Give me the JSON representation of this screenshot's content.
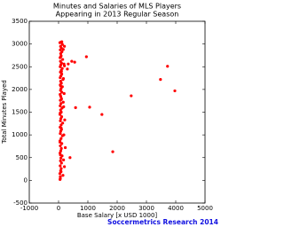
{
  "chart_data": {
    "type": "scatter",
    "title": [
      "Minutes and Salaries of MLS Players",
      "Appearing in 2013 Regular Season"
    ],
    "xlabel": "Base Salary [x USD 1000]",
    "ylabel": "Total Minutes Played",
    "annotation": "Soccermetrics Research 2014",
    "color": "#ff0000",
    "xlim": [
      -1000,
      5000
    ],
    "xticks": [
      -1000,
      0,
      1000,
      2000,
      3000,
      4000,
      5000
    ],
    "ylim": [
      -500,
      3500
    ],
    "yticks": [
      -500,
      0,
      500,
      1000,
      1500,
      2000,
      2500,
      3000,
      3500
    ],
    "x": [
      50,
      60,
      45,
      70,
      90,
      55,
      100,
      65,
      80,
      120,
      50,
      75,
      95,
      60,
      110,
      48,
      85,
      130,
      58,
      72,
      100,
      52,
      88,
      140,
      62,
      78,
      105,
      50,
      92,
      68,
      120,
      55,
      82,
      160,
      60,
      98,
      74,
      52,
      110,
      66,
      86,
      130,
      58,
      95,
      70,
      150,
      54,
      82,
      108,
      62,
      90,
      125,
      56,
      76,
      100,
      64,
      140,
      52,
      88,
      72,
      115,
      58,
      96,
      68,
      130,
      80,
      110,
      45,
      60,
      150,
      85,
      200,
      170,
      62,
      230,
      48,
      180,
      90,
      210,
      55,
      175,
      95,
      190,
      70,
      165,
      100,
      185,
      75,
      160,
      200,
      950,
      3720,
      3480,
      3970,
      2480,
      1060,
      1480,
      1850,
      580,
      330,
      450,
      550,
      390,
      300,
      200
    ],
    "y": [
      20,
      80,
      150,
      210,
      260,
      320,
      380,
      430,
      490,
      540,
      600,
      650,
      700,
      760,
      810,
      870,
      920,
      980,
      1030,
      1080,
      1120,
      1170,
      1220,
      1260,
      1310,
      1360,
      1400,
      1450,
      1500,
      1550,
      1590,
      1640,
      1690,
      1720,
      1760,
      1800,
      1850,
      1890,
      1940,
      1980,
      2020,
      2060,
      2100,
      2140,
      2180,
      2220,
      2260,
      2300,
      2340,
      2380,
      2420,
      2460,
      2500,
      2540,
      2580,
      2620,
      2660,
      2700,
      2740,
      2790,
      2830,
      2870,
      2910,
      2950,
      2990,
      3040,
      3050,
      3030,
      40,
      110,
      190,
      300,
      450,
      560,
      720,
      840,
      1000,
      1150,
      1330,
      1480,
      1620,
      1780,
      1910,
      2080,
      2240,
      2400,
      2560,
      2720,
      2880,
      2950,
      2720,
      2510,
      2220,
      1970,
      1860,
      1610,
      1450,
      630,
      1600,
      2560,
      2620,
      2600,
      500,
      2450,
      2520
    ]
  }
}
